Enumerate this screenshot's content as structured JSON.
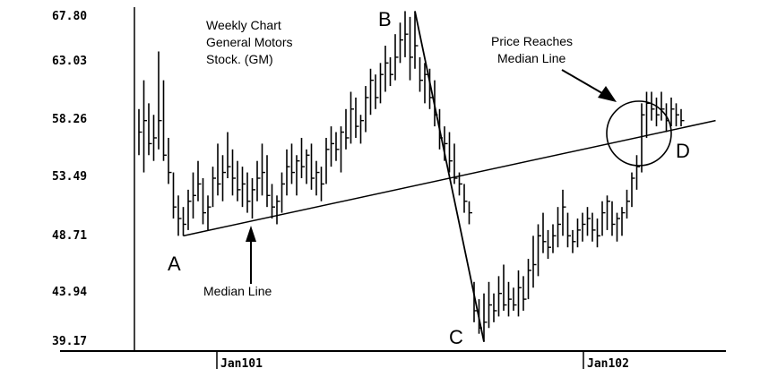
{
  "chart_data": {
    "type": "ohlc-bar",
    "title": "Weekly Chart General Motors Stock. (GM)",
    "y_ticks": [
      "67.80",
      "63.03",
      "58.26",
      "53.49",
      "48.71",
      "43.94",
      "39.17"
    ],
    "y_tick_values": [
      67.8,
      63.03,
      58.26,
      53.49,
      48.71,
      43.94,
      39.17
    ],
    "ylim": [
      38.5,
      68.5
    ],
    "x_ticks": [
      "Jan101",
      "Jan102"
    ],
    "x_tick_positions": [
      17,
      91
    ],
    "x_range": [
      0,
      117
    ],
    "points": {
      "A": {
        "label": "A",
        "x": 9,
        "y": 48.5
      },
      "B": {
        "label": "B",
        "x": 56,
        "y": 68.0
      },
      "C": {
        "label": "C",
        "x": 70,
        "y": 39.3
      },
      "D": {
        "label": "D",
        "x": 105,
        "y": 56.3
      }
    },
    "median_line": {
      "label": "Median Line",
      "x": [
        9,
        117
      ],
      "y": [
        48.5,
        58.5
      ]
    },
    "annotations": {
      "chart_title_lines": [
        "Weekly Chart",
        "General Motors",
        "Stock. (GM)"
      ],
      "price_reaches_lines": [
        "Price Reaches",
        "Median Line"
      ],
      "median_line_label": "Median Line"
    },
    "bars": [
      {
        "h": 59.5,
        "l": 55.5,
        "c": 57.5
      },
      {
        "h": 62.0,
        "l": 54.0,
        "c": 58.5
      },
      {
        "h": 60.0,
        "l": 55.5,
        "c": 56.5
      },
      {
        "h": 59.0,
        "l": 55.0,
        "c": 57.0
      },
      {
        "h": 64.5,
        "l": 56.0,
        "c": 58.5
      },
      {
        "h": 62.0,
        "l": 55.0,
        "c": 55.5
      },
      {
        "h": 57.0,
        "l": 53.0,
        "c": 54.0
      },
      {
        "h": 54.0,
        "l": 50.0,
        "c": 51.0
      },
      {
        "h": 52.0,
        "l": 48.5,
        "c": 50.0
      },
      {
        "h": 51.0,
        "l": 48.5,
        "c": 49.5
      },
      {
        "h": 52.5,
        "l": 49.0,
        "c": 51.5
      },
      {
        "h": 54.0,
        "l": 50.0,
        "c": 52.0
      },
      {
        "h": 55.0,
        "l": 51.5,
        "c": 53.0
      },
      {
        "h": 53.5,
        "l": 49.5,
        "c": 50.5
      },
      {
        "h": 52.0,
        "l": 49.0,
        "c": 51.0
      },
      {
        "h": 54.5,
        "l": 51.0,
        "c": 53.5
      },
      {
        "h": 56.5,
        "l": 52.0,
        "c": 53.0
      },
      {
        "h": 55.5,
        "l": 51.5,
        "c": 54.0
      },
      {
        "h": 57.5,
        "l": 53.5,
        "c": 54.5
      },
      {
        "h": 56.0,
        "l": 52.0,
        "c": 53.5
      },
      {
        "h": 55.0,
        "l": 51.5,
        "c": 52.5
      },
      {
        "h": 54.5,
        "l": 51.0,
        "c": 53.0
      },
      {
        "h": 54.0,
        "l": 50.5,
        "c": 51.5
      },
      {
        "h": 53.5,
        "l": 50.0,
        "c": 52.5
      },
      {
        "h": 55.0,
        "l": 51.5,
        "c": 53.5
      },
      {
        "h": 56.5,
        "l": 52.0,
        "c": 54.0
      },
      {
        "h": 55.5,
        "l": 51.0,
        "c": 52.0
      },
      {
        "h": 53.0,
        "l": 50.0,
        "c": 51.0
      },
      {
        "h": 52.0,
        "l": 49.5,
        "c": 51.5
      },
      {
        "h": 54.0,
        "l": 50.5,
        "c": 53.0
      },
      {
        "h": 56.0,
        "l": 52.0,
        "c": 54.5
      },
      {
        "h": 56.5,
        "l": 53.0,
        "c": 54.0
      },
      {
        "h": 55.5,
        "l": 52.0,
        "c": 55.0
      },
      {
        "h": 57.0,
        "l": 53.5,
        "c": 54.5
      },
      {
        "h": 56.0,
        "l": 53.0,
        "c": 55.5
      },
      {
        "h": 56.5,
        "l": 52.5,
        "c": 53.5
      },
      {
        "h": 55.0,
        "l": 52.0,
        "c": 54.0
      },
      {
        "h": 54.5,
        "l": 51.5,
        "c": 53.0
      },
      {
        "h": 57.0,
        "l": 53.0,
        "c": 56.0
      },
      {
        "h": 58.0,
        "l": 54.5,
        "c": 56.5
      },
      {
        "h": 57.5,
        "l": 55.0,
        "c": 56.0
      },
      {
        "h": 58.0,
        "l": 54.0,
        "c": 57.5
      },
      {
        "h": 59.5,
        "l": 56.0,
        "c": 57.0
      },
      {
        "h": 61.0,
        "l": 56.5,
        "c": 59.5
      },
      {
        "h": 60.5,
        "l": 57.0,
        "c": 58.0
      },
      {
        "h": 59.0,
        "l": 56.5,
        "c": 58.5
      },
      {
        "h": 61.5,
        "l": 57.5,
        "c": 60.5
      },
      {
        "h": 63.0,
        "l": 59.0,
        "c": 62.0
      },
      {
        "h": 62.5,
        "l": 59.5,
        "c": 60.5
      },
      {
        "h": 63.5,
        "l": 60.0,
        "c": 62.5
      },
      {
        "h": 65.0,
        "l": 61.0,
        "c": 63.5
      },
      {
        "h": 64.0,
        "l": 61.5,
        "c": 62.5
      },
      {
        "h": 66.0,
        "l": 62.0,
        "c": 64.0
      },
      {
        "h": 67.0,
        "l": 63.5,
        "c": 65.5
      },
      {
        "h": 68.0,
        "l": 64.0,
        "c": 66.0
      },
      {
        "h": 67.5,
        "l": 62.0,
        "c": 64.0
      },
      {
        "h": 68.0,
        "l": 63.0,
        "c": 65.0
      },
      {
        "h": 64.0,
        "l": 61.0,
        "c": 62.0
      },
      {
        "h": 63.5,
        "l": 60.0,
        "c": 62.5
      },
      {
        "h": 63.0,
        "l": 59.5,
        "c": 60.5
      },
      {
        "h": 62.0,
        "l": 58.0,
        "c": 59.0
      },
      {
        "h": 59.5,
        "l": 56.0,
        "c": 57.0
      },
      {
        "h": 58.0,
        "l": 55.0,
        "c": 56.5
      },
      {
        "h": 57.5,
        "l": 54.0,
        "c": 55.0
      },
      {
        "h": 56.5,
        "l": 53.0,
        "c": 53.5
      },
      {
        "h": 54.0,
        "l": 52.0,
        "c": 53.0
      },
      {
        "h": 53.0,
        "l": 50.5,
        "c": 51.5
      },
      {
        "h": 51.5,
        "l": 49.5,
        "c": 50.5
      },
      {
        "h": 44.5,
        "l": 41.0,
        "c": 42.0
      },
      {
        "h": 43.0,
        "l": 40.0,
        "c": 40.5
      },
      {
        "h": 43.5,
        "l": 39.3,
        "c": 41.0
      },
      {
        "h": 44.5,
        "l": 40.5,
        "c": 42.5
      },
      {
        "h": 43.5,
        "l": 41.0,
        "c": 42.0
      },
      {
        "h": 45.0,
        "l": 41.5,
        "c": 43.5
      },
      {
        "h": 46.0,
        "l": 42.0,
        "c": 42.5
      },
      {
        "h": 44.5,
        "l": 41.5,
        "c": 43.0
      },
      {
        "h": 44.0,
        "l": 42.0,
        "c": 42.5
      },
      {
        "h": 45.5,
        "l": 41.5,
        "c": 44.0
      },
      {
        "h": 45.0,
        "l": 42.0,
        "c": 43.0
      },
      {
        "h": 46.5,
        "l": 43.0,
        "c": 45.5
      },
      {
        "h": 48.5,
        "l": 44.0,
        "c": 46.0
      },
      {
        "h": 49.5,
        "l": 45.0,
        "c": 48.5
      },
      {
        "h": 50.5,
        "l": 47.0,
        "c": 48.0
      },
      {
        "h": 49.0,
        "l": 46.5,
        "c": 47.5
      },
      {
        "h": 49.5,
        "l": 47.0,
        "c": 48.5
      },
      {
        "h": 51.0,
        "l": 47.5,
        "c": 49.5
      },
      {
        "h": 52.5,
        "l": 48.5,
        "c": 51.0
      },
      {
        "h": 50.5,
        "l": 47.5,
        "c": 48.5
      },
      {
        "h": 49.0,
        "l": 47.0,
        "c": 48.0
      },
      {
        "h": 50.0,
        "l": 47.5,
        "c": 49.0
      },
      {
        "h": 50.5,
        "l": 48.0,
        "c": 49.5
      },
      {
        "h": 51.0,
        "l": 48.5,
        "c": 50.0
      },
      {
        "h": 50.5,
        "l": 48.0,
        "c": 49.0
      },
      {
        "h": 50.0,
        "l": 47.5,
        "c": 48.5
      },
      {
        "h": 51.5,
        "l": 48.5,
        "c": 50.5
      },
      {
        "h": 52.0,
        "l": 49.0,
        "c": 51.5
      },
      {
        "h": 51.5,
        "l": 48.5,
        "c": 49.5
      },
      {
        "h": 50.5,
        "l": 48.0,
        "c": 50.0
      },
      {
        "h": 51.0,
        "l": 48.5,
        "c": 50.5
      },
      {
        "h": 52.5,
        "l": 50.0,
        "c": 51.5
      },
      {
        "h": 54.0,
        "l": 51.0,
        "c": 53.5
      },
      {
        "h": 55.5,
        "l": 52.5,
        "c": 54.5
      },
      {
        "h": 60.0,
        "l": 54.0,
        "c": 59.0
      },
      {
        "h": 61.0,
        "l": 57.0,
        "c": 60.0
      },
      {
        "h": 61.0,
        "l": 58.5,
        "c": 59.5
      },
      {
        "h": 60.5,
        "l": 58.0,
        "c": 59.0
      },
      {
        "h": 61.0,
        "l": 58.5,
        "c": 59.5
      },
      {
        "h": 60.0,
        "l": 57.5,
        "c": 58.5
      },
      {
        "h": 60.5,
        "l": 58.0,
        "c": 59.5
      },
      {
        "h": 60.0,
        "l": 58.0,
        "c": 59.0
      },
      {
        "h": 59.5,
        "l": 58.0,
        "c": 58.5
      }
    ]
  }
}
